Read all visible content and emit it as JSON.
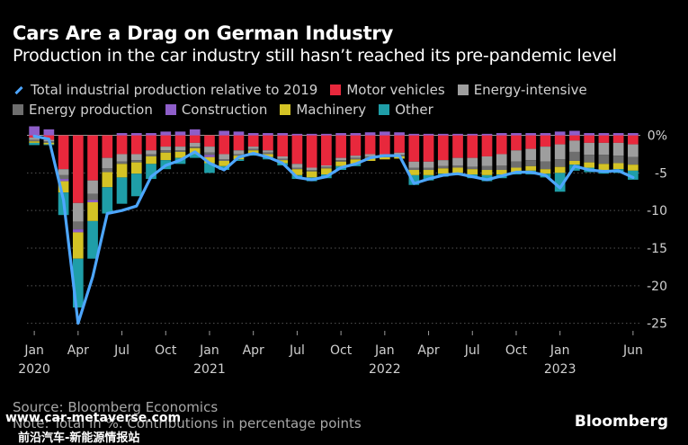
{
  "header": {
    "title": "Cars Are a Drag on German Industry",
    "subtitle": "Production in the car industry still hasn’t reached its pre-pandemic level"
  },
  "legend": {
    "total": {
      "label": "Total industrial production relative to 2019",
      "color": "#4da6ff"
    },
    "items": [
      {
        "label": "Motor vehicles",
        "color": "#e8283c"
      },
      {
        "label": "Energy-intensive",
        "color": "#9e9e9e"
      },
      {
        "label": "Energy production",
        "color": "#6e6e6e"
      },
      {
        "label": "Construction",
        "color": "#8e5ec9"
      },
      {
        "label": "Machinery",
        "color": "#d4c325"
      },
      {
        "label": "Other",
        "color": "#1f9ea8"
      }
    ]
  },
  "footer": {
    "source": "Source: Bloomberg Economics",
    "note": "Note: Total in %. Contributions in percentage points",
    "brand": "Bloomberg",
    "watermark_url": "www.car-metaverse.com",
    "watermark_cn": "前沿汽车-新能源情报站"
  },
  "chart_data": {
    "type": "bar",
    "stacked": true,
    "title": "Cars Are a Drag on German Industry",
    "subtitle": "Production in the car industry still hasn’t reached its pre-pandemic level",
    "xlabel": "",
    "ylabel": "",
    "ylim": [
      -26,
      1.5
    ],
    "yticks": [
      0,
      -5,
      -10,
      -15,
      -20,
      -25
    ],
    "ytick_labels": [
      "0%",
      "-5",
      "-10",
      "-15",
      "-20",
      "-25"
    ],
    "x_tick_labels": [
      {
        "index": 0,
        "label": "Jan",
        "year": "2020"
      },
      {
        "index": 3,
        "label": "Apr",
        "year": ""
      },
      {
        "index": 6,
        "label": "Jul",
        "year": ""
      },
      {
        "index": 9,
        "label": "Oct",
        "year": ""
      },
      {
        "index": 12,
        "label": "Jan",
        "year": "2021"
      },
      {
        "index": 15,
        "label": "Apr",
        "year": ""
      },
      {
        "index": 18,
        "label": "Jul",
        "year": ""
      },
      {
        "index": 21,
        "label": "Oct",
        "year": ""
      },
      {
        "index": 24,
        "label": "Jan",
        "year": "2022"
      },
      {
        "index": 27,
        "label": "Apr",
        "year": ""
      },
      {
        "index": 30,
        "label": "Jul",
        "year": ""
      },
      {
        "index": 33,
        "label": "Oct",
        "year": ""
      },
      {
        "index": 36,
        "label": "Jan",
        "year": "2023"
      },
      {
        "index": 41,
        "label": "Jun",
        "year": ""
      }
    ],
    "categories": [
      "2020-01",
      "2020-02",
      "2020-03",
      "2020-04",
      "2020-05",
      "2020-06",
      "2020-07",
      "2020-08",
      "2020-09",
      "2020-10",
      "2020-11",
      "2020-12",
      "2021-01",
      "2021-02",
      "2021-03",
      "2021-04",
      "2021-05",
      "2021-06",
      "2021-07",
      "2021-08",
      "2021-09",
      "2021-10",
      "2021-11",
      "2021-12",
      "2022-01",
      "2022-02",
      "2022-03",
      "2022-04",
      "2022-05",
      "2022-06",
      "2022-07",
      "2022-08",
      "2022-09",
      "2022-10",
      "2022-11",
      "2022-12",
      "2023-01",
      "2023-02",
      "2023-03",
      "2023-04",
      "2023-05",
      "2023-06"
    ],
    "series": [
      {
        "name": "Motor vehicles",
        "color": "#e8283c",
        "values": [
          -0.3,
          -0.6,
          -4.5,
          -9.0,
          -6.0,
          -3.0,
          -2.5,
          -2.5,
          -2.0,
          -1.5,
          -1.5,
          -1.0,
          -1.5,
          -2.5,
          -2.0,
          -1.5,
          -2.0,
          -2.8,
          -3.8,
          -4.3,
          -4.0,
          -3.0,
          -2.7,
          -2.5,
          -2.5,
          -2.3,
          -3.5,
          -3.5,
          -3.3,
          -3.0,
          -3.0,
          -2.8,
          -2.5,
          -2.0,
          -1.8,
          -1.5,
          -1.2,
          -0.7,
          -1.0,
          -1.0,
          -1.0,
          -1.2
        ]
      },
      {
        "name": "Energy-intensive",
        "color": "#9e9e9e",
        "values": [
          -0.3,
          -0.2,
          -0.8,
          -2.5,
          -1.8,
          -1.4,
          -1.0,
          -0.8,
          -0.5,
          -0.5,
          -0.5,
          -0.5,
          -0.8,
          -0.7,
          -0.5,
          -0.3,
          -0.3,
          -0.3,
          -0.5,
          -0.3,
          -0.2,
          -0.3,
          -0.3,
          -0.3,
          -0.2,
          -0.3,
          -0.8,
          -0.8,
          -0.8,
          -1.0,
          -1.2,
          -1.3,
          -1.5,
          -1.5,
          -1.5,
          -2.0,
          -2.0,
          -1.5,
          -1.6,
          -1.6,
          -1.7,
          -1.7
        ]
      },
      {
        "name": "Energy production",
        "color": "#6e6e6e",
        "values": [
          -0.2,
          -0.2,
          -0.5,
          -1.0,
          -0.8,
          -0.5,
          -0.3,
          -0.3,
          -0.3,
          -0.3,
          -0.2,
          -0.2,
          -0.3,
          -0.2,
          -0.2,
          -0.2,
          -0.2,
          -0.2,
          -0.2,
          -0.2,
          -0.2,
          -0.2,
          -0.2,
          -0.2,
          -0.2,
          -0.2,
          -0.3,
          -0.3,
          -0.3,
          -0.3,
          -0.3,
          -0.5,
          -0.6,
          -0.8,
          -0.8,
          -1.0,
          -1.0,
          -1.2,
          -1.0,
          -1.2,
          -1.0,
          -1.0
        ]
      },
      {
        "name": "Construction",
        "color": "#8e5ec9",
        "values": [
          1.2,
          0.8,
          -0.3,
          -0.4,
          -0.3,
          0.0,
          0.3,
          0.3,
          0.3,
          0.5,
          0.5,
          0.8,
          -0.3,
          0.6,
          0.5,
          0.3,
          0.3,
          0.3,
          0.2,
          0.2,
          0.2,
          0.3,
          0.3,
          0.4,
          0.5,
          0.4,
          0.2,
          0.2,
          0.2,
          0.2,
          0.2,
          0.2,
          0.3,
          0.3,
          0.3,
          0.3,
          0.5,
          0.6,
          0.3,
          0.3,
          0.3,
          0.3
        ]
      },
      {
        "name": "Machinery",
        "color": "#d4c325",
        "values": [
          -0.2,
          -0.2,
          -1.5,
          -3.5,
          -2.5,
          -2.0,
          -1.8,
          -1.5,
          -1.0,
          -1.0,
          -0.8,
          -0.8,
          -0.8,
          -0.7,
          -0.5,
          -0.4,
          -0.4,
          -0.4,
          -0.8,
          -0.8,
          -0.8,
          -0.6,
          -0.6,
          -0.4,
          -0.3,
          -0.3,
          -0.7,
          -0.7,
          -0.7,
          -0.7,
          -0.7,
          -0.7,
          -0.6,
          -0.6,
          -0.6,
          -0.6,
          -0.8,
          -0.5,
          -0.7,
          -0.8,
          -0.8,
          -0.8
        ]
      },
      {
        "name": "Other",
        "color": "#1f9ea8",
        "values": [
          -0.3,
          -0.1,
          -3.0,
          -6.5,
          -5.0,
          -3.5,
          -3.5,
          -3.0,
          -2.0,
          -1.2,
          -0.8,
          -0.5,
          -1.3,
          -0.5,
          -0.2,
          -0.3,
          -0.3,
          -0.3,
          -0.5,
          -0.5,
          -0.5,
          -0.5,
          -0.3,
          0.0,
          0.0,
          0.0,
          -1.3,
          -0.7,
          -0.4,
          -0.3,
          -0.5,
          -0.8,
          -0.5,
          -0.3,
          -0.5,
          -0.5,
          -2.5,
          -0.8,
          -0.6,
          -0.5,
          -0.5,
          -1.2
        ]
      }
    ],
    "total": {
      "name": "Total industrial production relative to 2019",
      "color": "#4da6ff",
      "values": [
        -0.1,
        -0.5,
        -8.6,
        -25.0,
        -18.8,
        -10.4,
        -10.0,
        -9.4,
        -5.5,
        -4.0,
        -3.3,
        -2.2,
        -3.7,
        -4.6,
        -2.9,
        -2.4,
        -2.9,
        -3.7,
        -5.6,
        -5.9,
        -5.5,
        -4.3,
        -3.8,
        -3.0,
        -2.7,
        -2.7,
        -6.4,
        -5.8,
        -5.3,
        -5.1,
        -5.5,
        -5.9,
        -5.4,
        -4.9,
        -4.9,
        -5.3,
        -7.0,
        -4.1,
        -4.6,
        -4.8,
        -4.7,
        -5.6
      ]
    }
  }
}
